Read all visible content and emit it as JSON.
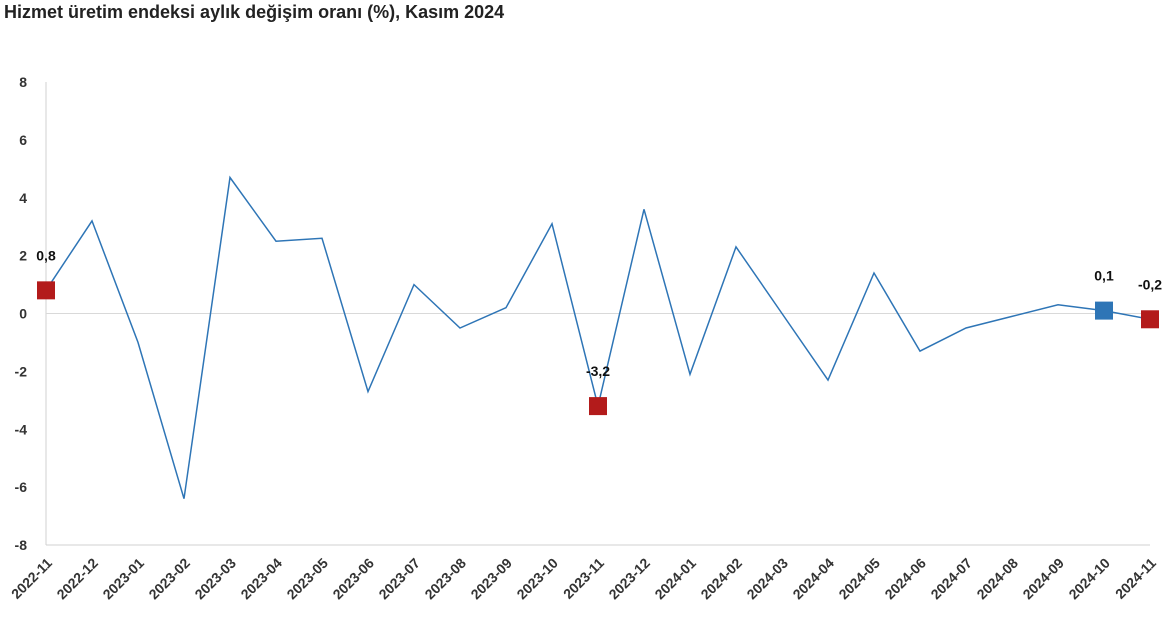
{
  "chart_data": {
    "type": "line",
    "title": "Hizmet üretim endeksi aylık değişim oranı (%), Kasım 2024",
    "xlabel": "",
    "ylabel": "",
    "ylim": [
      -8,
      8
    ],
    "yticks": [
      "8",
      "6",
      "4",
      "2",
      "0",
      "-2",
      "-4",
      "-6",
      "-8"
    ],
    "grid": false,
    "categories": [
      "2022-11",
      "2022-12",
      "2023-01",
      "2023-02",
      "2023-03",
      "2023-04",
      "2023-05",
      "2023-06",
      "2023-07",
      "2023-08",
      "2023-09",
      "2023-10",
      "2023-11",
      "2023-12",
      "2024-01",
      "2024-02",
      "2024-03",
      "2024-04",
      "2024-05",
      "2024-06",
      "2024-07",
      "2024-08",
      "2024-09",
      "2024-10",
      "2024-11"
    ],
    "series": [
      {
        "color": "#2e75b6",
        "values": [
          0.8,
          3.2,
          -1.0,
          -6.4,
          4.7,
          2.5,
          2.6,
          -2.7,
          1.0,
          -0.5,
          0.2,
          3.1,
          -3.2,
          3.6,
          -2.1,
          2.3,
          0.0,
          -2.3,
          1.4,
          -1.3,
          -0.5,
          -0.1,
          0.3,
          0.1,
          -0.2
        ]
      }
    ],
    "highlights": [
      {
        "index": 0,
        "label": "0,8",
        "color": "#b31b1b"
      },
      {
        "index": 12,
        "label": "-3,2",
        "color": "#b31b1b"
      },
      {
        "index": 23,
        "label": "0,1",
        "color": "#2e75b6"
      },
      {
        "index": 24,
        "label": "-0,2",
        "color": "#b31b1b"
      }
    ]
  }
}
